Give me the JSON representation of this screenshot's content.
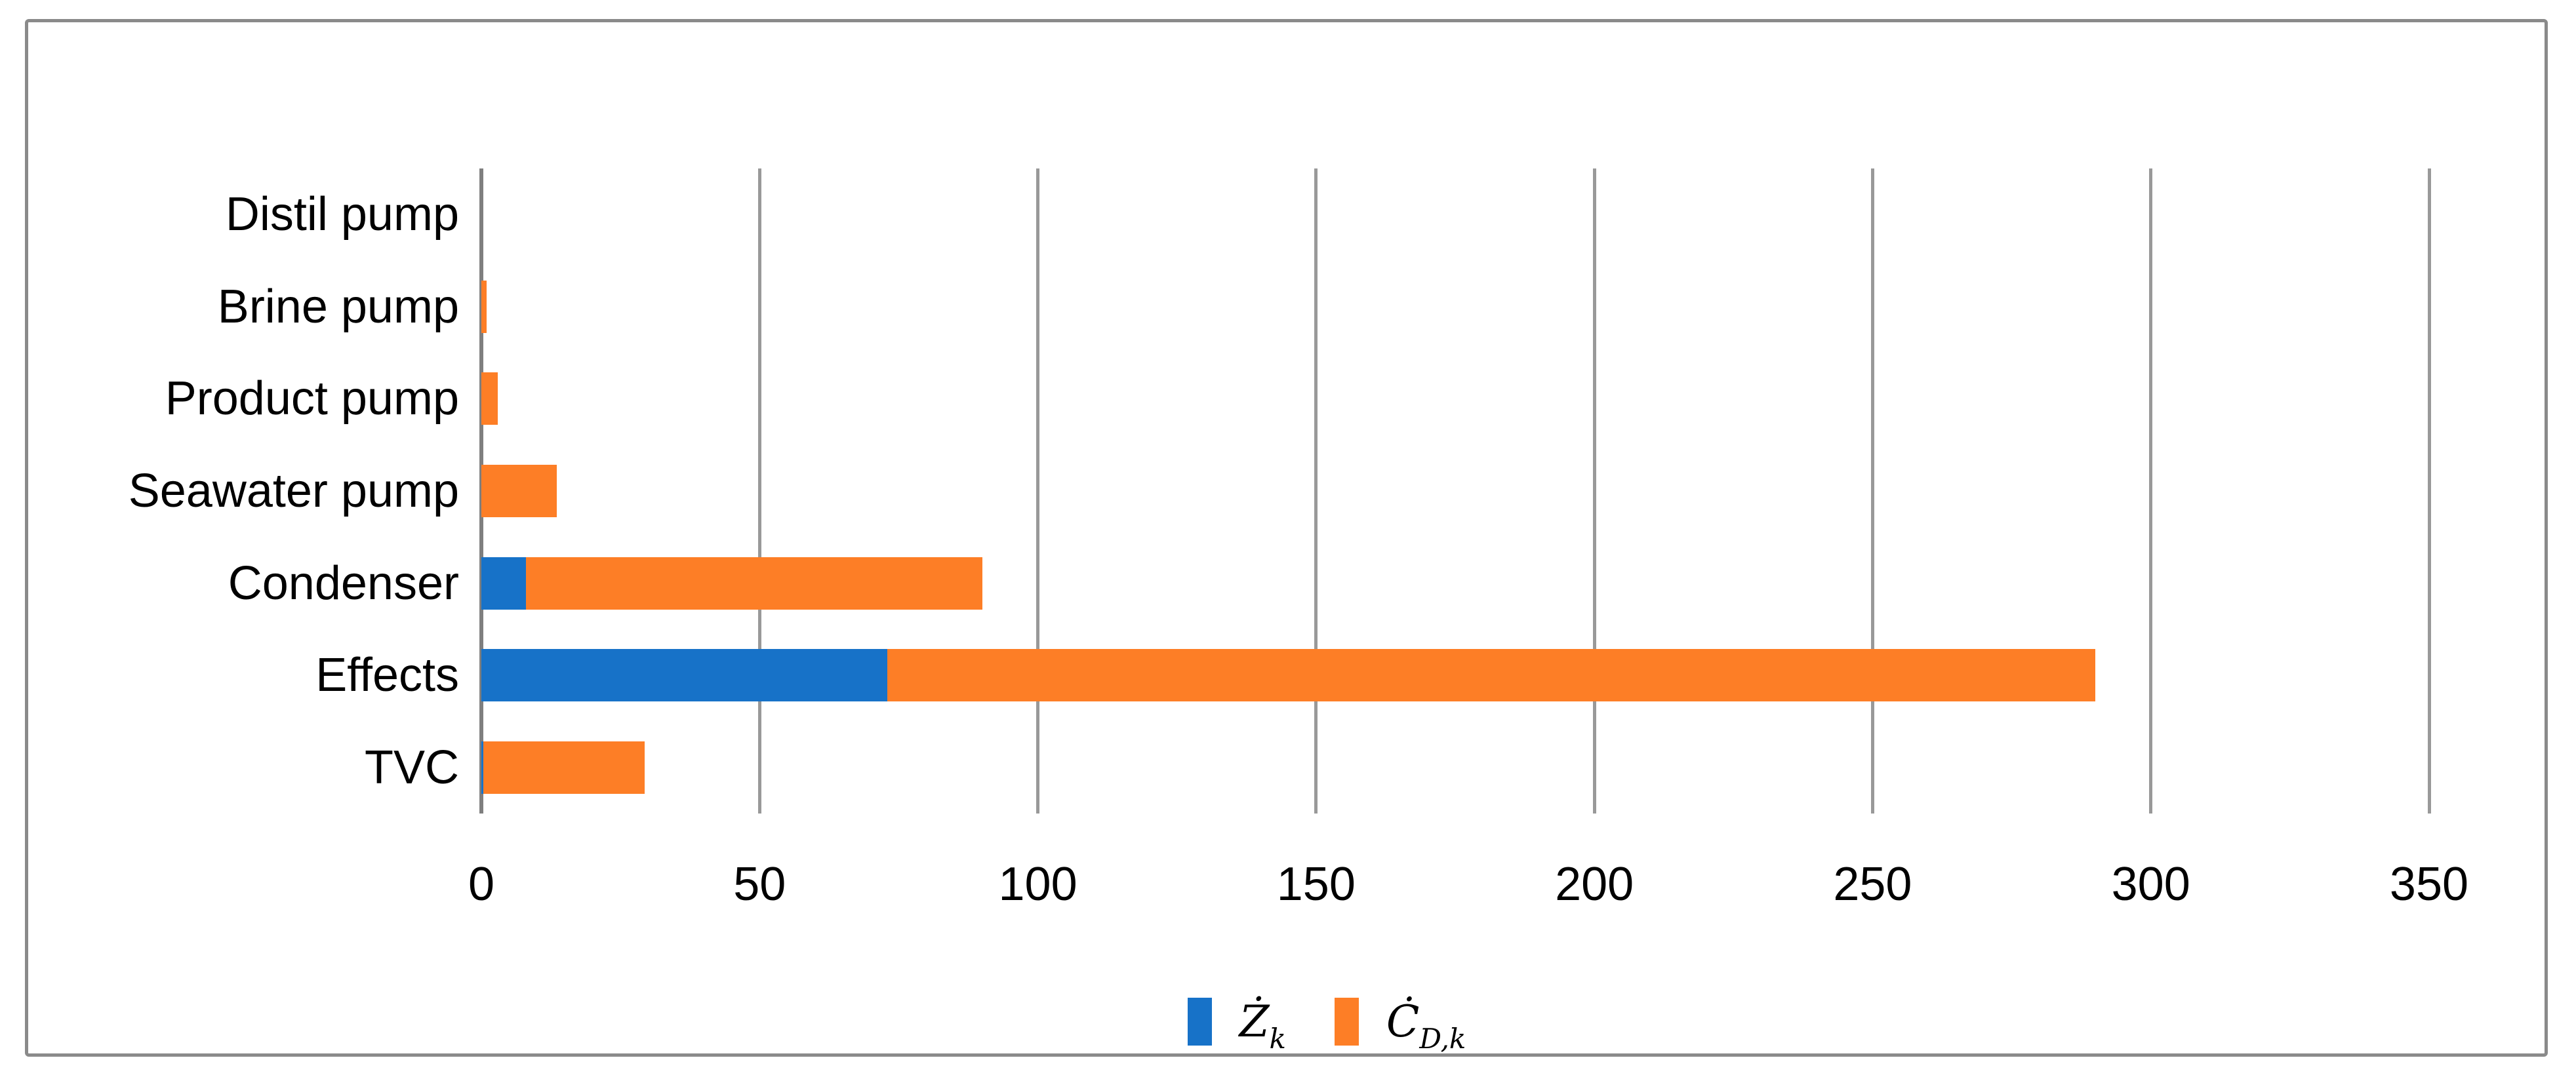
{
  "figure": {
    "background": "#ffffff",
    "border_color": "#8a8a8a"
  },
  "chart_data": {
    "type": "bar",
    "orientation": "horizontal",
    "stacked": true,
    "title": "",
    "xlabel": "",
    "ylabel": "",
    "categories": [
      "Distil pump",
      "Brine pump",
      "Product pump",
      "Seawater pump",
      "Condenser",
      "Effects",
      "TVC"
    ],
    "series": [
      {
        "name": "Ż_k",
        "symbol": "Ż",
        "subscript": "k",
        "color": "#1772c8",
        "values": [
          0,
          0,
          0,
          0,
          8,
          73,
          0.4
        ]
      },
      {
        "name": "Ċ_D,k",
        "symbol": "Ċ",
        "subscript": "D,k",
        "color": "#fd7e26",
        "values": [
          0,
          1,
          3,
          13.5,
          82,
          217,
          29
        ]
      }
    ],
    "totals": [
      0,
      1,
      3,
      13.5,
      90,
      290,
      29.4
    ],
    "xlim": [
      0,
      350
    ],
    "xticks": [
      0,
      50,
      100,
      150,
      200,
      250,
      300,
      350
    ],
    "grid": "vertical",
    "gridline_color": "#999999",
    "axis_line_color": "#7f7f7f",
    "tick_label_color": "#000000",
    "legend_position": "bottom-center"
  }
}
